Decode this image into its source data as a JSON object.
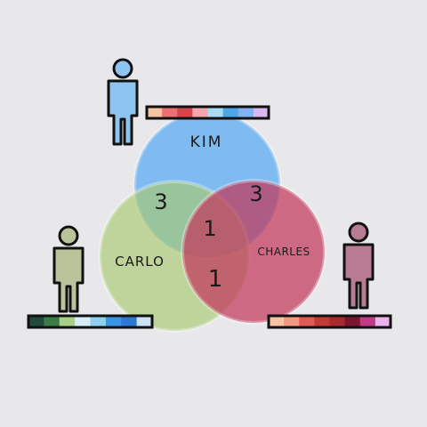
{
  "players": [
    {
      "name": "KIM",
      "figure_color": "#8ec4f0",
      "palette": [
        "#f6c4a0",
        "#ee6f6f",
        "#d8424a",
        "#f4a6b0",
        "#a8dcf2",
        "#4da6e8",
        "#7fb2f0",
        "#d9b8f0"
      ]
    },
    {
      "name": "CARLO",
      "figure_color": "#b9c49a",
      "palette": [
        "#214a3a",
        "#3c7a46",
        "#a7cf86",
        "#d6ecf6",
        "#8fd0ef",
        "#3c96e6",
        "#2c78d2",
        "#c9e0f6"
      ]
    },
    {
      "name": "CHARLES",
      "figure_color": "#b77c92",
      "palette": [
        "#f8c2a4",
        "#f29a84",
        "#e05a58",
        "#c23a36",
        "#a82a2e",
        "#7a1430",
        "#c23a86",
        "#eab4ec"
      ]
    }
  ],
  "circles": [
    {
      "player": "KIM",
      "color": "#52a8f2"
    },
    {
      "player": "CARLO",
      "color": "#a7c96e"
    },
    {
      "player": "CHARLES",
      "color": "#c2385a"
    }
  ],
  "counts": {
    "kim_carlo": "3",
    "kim_charles": "3",
    "all_three": "1",
    "carlo_charles": "1"
  }
}
